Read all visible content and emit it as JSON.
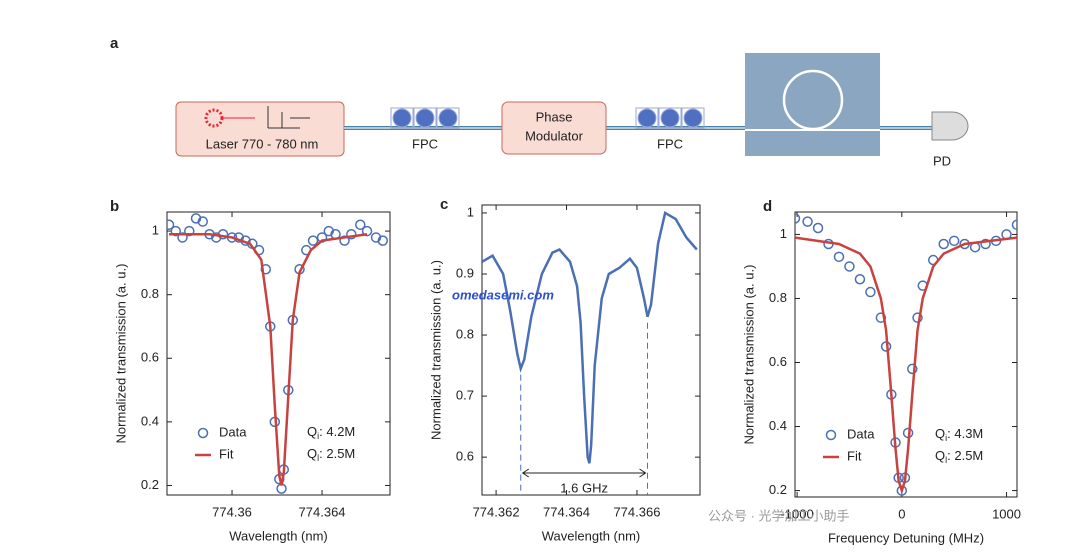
{
  "figure": {
    "panel_labels": [
      "a",
      "b",
      "c",
      "d"
    ],
    "setup": {
      "laser": "Laser 770 - 780 nm",
      "fpc1": "FPC",
      "modulator_line1": "Phase",
      "modulator_line2": "Modulator",
      "fpc2": "FPC",
      "detector": "PD"
    },
    "watermark": "omedasemi.com",
    "credit": "公众号 · 光学加工小助手"
  },
  "chart_data": [
    {
      "type": "line",
      "xlabel": "Wavelength (nm)",
      "ylabel": "Normalized transmission (a. u.)",
      "xlim": [
        774.35711,
        774.36702
      ],
      "ylim": [
        0.17,
        1.06
      ],
      "xticks": [
        774.36,
        774.364
      ],
      "yticks": [
        0.2,
        0.4,
        0.6,
        0.8,
        1
      ],
      "legend": "lower left",
      "series": [
        {
          "name": "Data",
          "color": "#4a6fb5",
          "style": "markers",
          "x": [
            774.3572,
            774.3575,
            774.3578,
            774.3581,
            774.3584,
            774.3587,
            774.359,
            774.3593,
            774.3596,
            774.36,
            774.3603,
            774.3606,
            774.3609,
            774.3612,
            774.3615,
            774.3617,
            774.3619,
            774.3621,
            774.3622,
            774.3623,
            774.3625,
            774.3627,
            774.363,
            774.3633,
            774.3636,
            774.364,
            774.3643,
            774.3646,
            774.365,
            774.3653,
            774.3657,
            774.366,
            774.3664,
            774.3667
          ],
          "values": [
            1.02,
            1.0,
            0.98,
            1.0,
            1.04,
            1.03,
            0.99,
            0.98,
            0.99,
            0.98,
            0.98,
            0.97,
            0.96,
            0.94,
            0.88,
            0.7,
            0.4,
            0.22,
            0.19,
            0.25,
            0.5,
            0.72,
            0.88,
            0.94,
            0.97,
            0.98,
            1.0,
            0.99,
            0.97,
            0.99,
            1.02,
            1.0,
            0.98,
            0.97
          ]
        },
        {
          "name": "Fit",
          "color": "#c8423f",
          "style": "line",
          "x": [
            774.3572,
            774.359,
            774.36,
            774.3608,
            774.3613,
            774.3617,
            774.3619,
            774.3621,
            774.3622,
            774.3623,
            774.3625,
            774.3627,
            774.363,
            774.3635,
            774.364,
            774.365,
            774.366
          ],
          "values": [
            0.99,
            0.99,
            0.98,
            0.96,
            0.91,
            0.7,
            0.45,
            0.23,
            0.2,
            0.24,
            0.48,
            0.72,
            0.87,
            0.94,
            0.97,
            0.98,
            0.99
          ]
        }
      ],
      "annotations": [
        {
          "main": "Q",
          "sub": "i",
          "text": ": 4.2M"
        },
        {
          "main": "Q",
          "sub": "l",
          "text": ": 2.5M"
        }
      ]
    },
    {
      "type": "line",
      "xlabel": "Wavelength (nm)",
      "ylabel": "Normalized transmission (a. u.)",
      "xlim": [
        774.3616,
        774.36779
      ],
      "ylim": [
        0.538,
        1.013
      ],
      "xticks": [
        774.362,
        774.364,
        774.366
      ],
      "yticks": [
        0.6,
        0.7,
        0.8,
        0.9,
        1
      ],
      "series": [
        {
          "color": "#4a6fb5",
          "style": "line",
          "x": [
            774.3616,
            774.3619,
            774.3622,
            774.3624,
            774.3626,
            774.3627,
            774.3628,
            774.363,
            774.3633,
            774.3636,
            774.3638,
            774.3641,
            774.3643,
            774.3644,
            774.3645,
            774.3646,
            774.36465,
            774.3647,
            774.3648,
            774.365,
            774.3652,
            774.3655,
            774.3658,
            774.366,
            774.3662,
            774.3663,
            774.3664,
            774.3666,
            774.3668,
            774.3671,
            774.3674,
            774.3677
          ],
          "values": [
            0.92,
            0.93,
            0.9,
            0.84,
            0.77,
            0.745,
            0.76,
            0.83,
            0.9,
            0.935,
            0.94,
            0.92,
            0.88,
            0.82,
            0.7,
            0.6,
            0.59,
            0.62,
            0.75,
            0.86,
            0.9,
            0.91,
            0.925,
            0.91,
            0.86,
            0.83,
            0.85,
            0.95,
            1.0,
            0.99,
            0.96,
            0.94
          ]
        }
      ],
      "markers": [
        774.3627,
        774.3663
      ],
      "span_label": "1.6 GHz"
    },
    {
      "type": "line",
      "xlabel": "Frequency Detuning (MHz)",
      "ylabel": "Normalized transmission (a. u.)",
      "xlim": [
        -1020,
        1100
      ],
      "ylim": [
        0.18,
        1.07
      ],
      "xticks": [
        -1000,
        0,
        1000
      ],
      "yticks": [
        0.2,
        0.4,
        0.6,
        0.8,
        1
      ],
      "legend": "lower left",
      "series": [
        {
          "name": "Data",
          "color": "#4a6fb5",
          "style": "markers",
          "x": [
            -1020,
            -900,
            -800,
            -700,
            -600,
            -500,
            -400,
            -300,
            -200,
            -150,
            -100,
            -60,
            -30,
            0,
            30,
            60,
            100,
            150,
            200,
            300,
            400,
            500,
            600,
            700,
            800,
            900,
            1000,
            1100
          ],
          "values": [
            1.05,
            1.04,
            1.02,
            0.97,
            0.93,
            0.9,
            0.86,
            0.82,
            0.74,
            0.65,
            0.5,
            0.35,
            0.24,
            0.2,
            0.24,
            0.38,
            0.58,
            0.74,
            0.84,
            0.92,
            0.97,
            0.98,
            0.97,
            0.96,
            0.97,
            0.98,
            1.0,
            1.03
          ]
        },
        {
          "name": "Fit",
          "color": "#c8423f",
          "style": "line",
          "x": [
            -1020,
            -600,
            -400,
            -300,
            -200,
            -150,
            -100,
            -60,
            -30,
            0,
            30,
            60,
            100,
            150,
            200,
            300,
            400,
            600,
            1100
          ],
          "values": [
            0.99,
            0.97,
            0.94,
            0.9,
            0.8,
            0.7,
            0.5,
            0.33,
            0.23,
            0.2,
            0.23,
            0.33,
            0.5,
            0.7,
            0.8,
            0.9,
            0.94,
            0.97,
            0.99
          ]
        }
      ],
      "annotations": [
        {
          "main": "Q",
          "sub": "i",
          "text": ": 4.3M"
        },
        {
          "main": "Q",
          "sub": "l",
          "text": ": 2.5M"
        }
      ]
    }
  ]
}
